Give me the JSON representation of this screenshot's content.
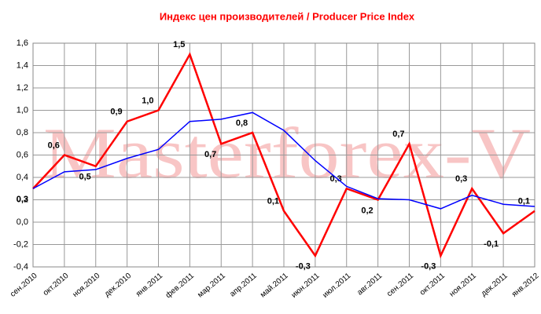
{
  "chart_data": {
    "type": "line",
    "title": "Индекс цен производителей / Producer Price Index",
    "watermark": "Masterforex-V",
    "categories": [
      "сен.2010",
      "окт.2010",
      "ноя.2010",
      "дек.2010",
      "янв.2011",
      "фев.2011",
      "мар.2011",
      "апр.2011",
      "май.2011",
      "июн.2011",
      "июл.2011",
      "авг.2011",
      "сен.2011",
      "окт.2011",
      "ноя.2011",
      "дек.2011",
      "янв.2012"
    ],
    "series": [
      {
        "color": "#ff0000",
        "values": [
          0.3,
          0.6,
          0.5,
          0.9,
          1.0,
          1.5,
          0.7,
          0.8,
          0.1,
          -0.3,
          0.3,
          0.2,
          0.7,
          -0.3,
          0.3,
          -0.1,
          0.1
        ],
        "value_labels": [
          "0,3",
          "0,6",
          "0,5",
          "0,9",
          "1,0",
          "1,5",
          "0,7",
          "0,8",
          "0,1",
          "-0,3",
          "0,3",
          "0,2",
          "0,7",
          "-0,3",
          "0,3",
          "-0,1",
          "0,1"
        ]
      },
      {
        "color": "#0000ff",
        "values": [
          0.3,
          0.45,
          0.47,
          0.57,
          0.65,
          0.9,
          0.92,
          0.98,
          0.82,
          0.55,
          0.32,
          0.21,
          0.2,
          0.12,
          0.24,
          0.16,
          0.14
        ]
      }
    ],
    "ylim": [
      -0.4,
      1.6
    ],
    "yticks": [
      {
        "value": -0.4,
        "label": "-0,4"
      },
      {
        "value": -0.2,
        "label": "-0,2"
      },
      {
        "value": 0,
        "label": "0,0"
      },
      {
        "value": 0.2,
        "label": "0,2"
      },
      {
        "value": 0.4,
        "label": "0,4"
      },
      {
        "value": 0.6,
        "label": "0,6"
      },
      {
        "value": 0.8,
        "label": "0,8"
      },
      {
        "value": 1.0,
        "label": "1,0"
      },
      {
        "value": 1.2,
        "label": "1,2"
      },
      {
        "value": 1.4,
        "label": "1,4"
      },
      {
        "value": 1.6,
        "label": "1,6"
      }
    ],
    "grid": true
  }
}
